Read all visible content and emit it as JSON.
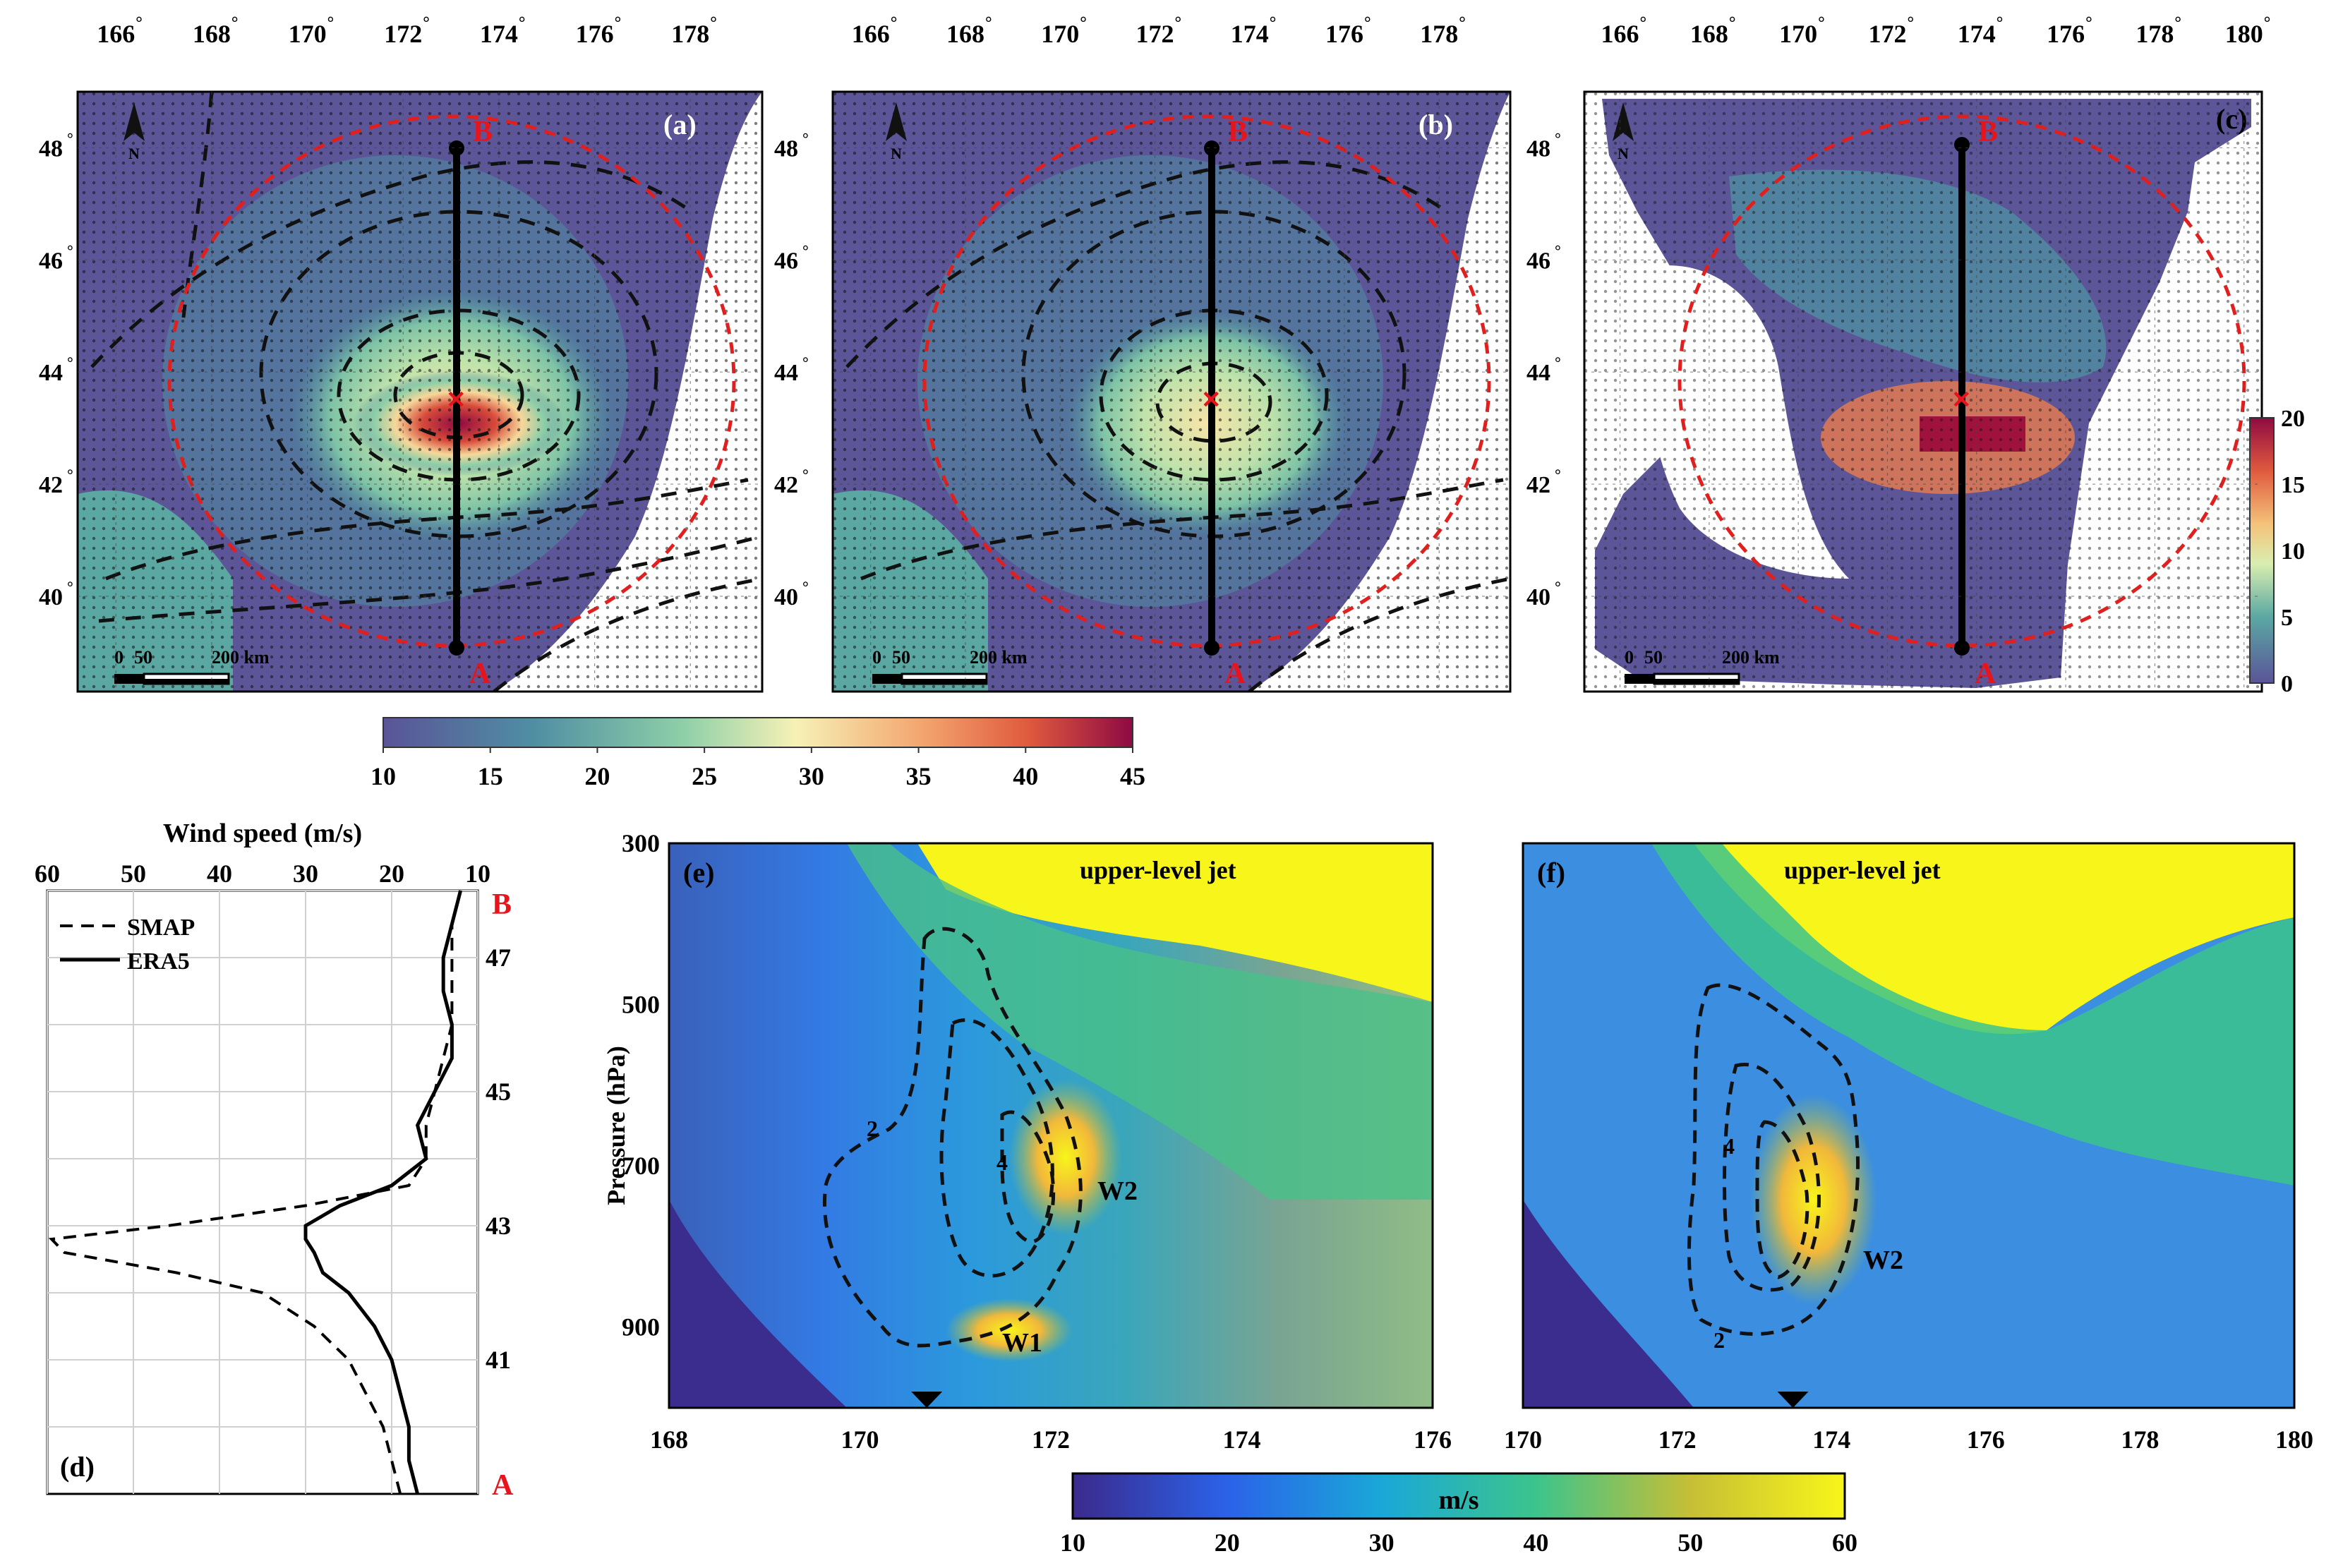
{
  "chart_data": [
    {
      "type": "heatmap",
      "panel": "(a)",
      "lon_ticks": [
        "166",
        "168",
        "170",
        "172",
        "174",
        "176",
        "178"
      ],
      "lat_ticks": [
        "48",
        "46",
        "44",
        "42",
        "40"
      ],
      "lon_range": [
        165,
        179
      ],
      "lat_range": [
        38.3,
        49
      ],
      "points": {
        "A": "A",
        "B": "B"
      },
      "scale_bar": {
        "zero": "0",
        "mid": "50",
        "end": "200 km"
      },
      "north": "N",
      "colorbar": {
        "min": 10,
        "max": 45,
        "ticks": [
          "10",
          "15",
          "20",
          "25",
          "30",
          "35",
          "40",
          "45"
        ]
      },
      "cyclone_center": {
        "lon": 173.3,
        "lat": 43.5
      },
      "transect": {
        "lon": 173.3,
        "lat_from": 39,
        "lat_to": 48
      }
    },
    {
      "type": "heatmap",
      "panel": "(b)",
      "lon_ticks": [
        "166",
        "168",
        "170",
        "172",
        "174",
        "176",
        "178"
      ],
      "lat_ticks": [
        "48",
        "46",
        "44",
        "42",
        "40"
      ],
      "points": {
        "A": "A",
        "B": "B"
      },
      "scale_bar": {
        "zero": "0",
        "mid": "50",
        "end": "200 km"
      },
      "north": "N",
      "cyclone_center": {
        "lon": 173.3,
        "lat": 43.5
      }
    },
    {
      "type": "heatmap",
      "panel": "(c)",
      "lon_ticks": [
        "166",
        "168",
        "170",
        "172",
        "174",
        "176",
        "178",
        "180"
      ],
      "lat_ticks": [
        "48",
        "46",
        "44",
        "42",
        "40"
      ],
      "points": {
        "A": "A",
        "B": "B"
      },
      "scale_bar": {
        "zero": "0",
        "mid": "50",
        "end": "200 km"
      },
      "north": "N",
      "colorbar": {
        "min": 0,
        "max": 20,
        "ticks": [
          "20",
          "15",
          "10",
          "5",
          "0"
        ]
      }
    },
    {
      "type": "line",
      "panel": "(d)",
      "xlabel": "Wind speed (m/s)",
      "x_ticks": [
        "60",
        "50",
        "40",
        "30",
        "20",
        "10"
      ],
      "xlim": [
        60,
        10
      ],
      "y_ticks": [
        "47",
        "45",
        "43",
        "41"
      ],
      "ylim": [
        39,
        48
      ],
      "top_label": "B",
      "bottom_label": "A",
      "series": [
        {
          "name": "SMAP",
          "style": "dashed",
          "lat": [
            39.0,
            39.5,
            40.0,
            40.5,
            41.0,
            41.5,
            42.0,
            42.3,
            42.6,
            42.8,
            43.0,
            43.3,
            43.6,
            44.0,
            44.5,
            45.0,
            45.5,
            46.0,
            46.5,
            47.0,
            47.5,
            48.0
          ],
          "speed": [
            19,
            20,
            21,
            23,
            25,
            29,
            35,
            45,
            58,
            59.5,
            46,
            30,
            18,
            16,
            16,
            15,
            14,
            13,
            13,
            13,
            13,
            12
          ]
        },
        {
          "name": "ERA5",
          "style": "solid",
          "lat": [
            39.0,
            39.5,
            40.0,
            40.5,
            41.0,
            41.5,
            42.0,
            42.3,
            42.6,
            42.8,
            43.0,
            43.3,
            43.6,
            44.0,
            44.5,
            45.0,
            45.5,
            46.0,
            46.5,
            47.0,
            47.5,
            48.0
          ],
          "speed": [
            17,
            18,
            18,
            19,
            20,
            22,
            25,
            28,
            29,
            30,
            30,
            26,
            20,
            16,
            17,
            15,
            13,
            13,
            14,
            14,
            13,
            12
          ]
        }
      ]
    },
    {
      "type": "heatmap",
      "panel": "(e)",
      "xlim": [
        168,
        176
      ],
      "x_ticks": [
        "168",
        "170",
        "172",
        "174",
        "176"
      ],
      "ylabel": "Pressure (hPa)",
      "y_ticks": [
        "300",
        "500",
        "700",
        "900"
      ],
      "ylim": [
        300,
        1000
      ],
      "annotations": [
        "upper-level jet",
        "W1",
        "W2",
        "2",
        "4"
      ],
      "marker_lon": 170.7
    },
    {
      "type": "heatmap",
      "panel": "(f)",
      "xlim": [
        170,
        180
      ],
      "x_ticks": [
        "170",
        "172",
        "174",
        "176",
        "178",
        "180"
      ],
      "y_ticks": [
        "300",
        "500",
        "700",
        "900"
      ],
      "ylim": [
        300,
        1000
      ],
      "annotations": [
        "upper-level jet",
        "W2",
        "2",
        "4"
      ],
      "marker_lon": 173.5
    },
    {
      "type": "colorbar",
      "label": "m/s",
      "min": 10,
      "max": 60,
      "ticks": [
        "10",
        "20",
        "30",
        "40",
        "50",
        "60"
      ]
    }
  ],
  "colors": {
    "transect_label": "#e8141c",
    "red_dash": "#e0201e",
    "viridis_low": "#3e1f87",
    "viridis_high": "#f7f21a"
  },
  "legend": {
    "smap": "SMAP",
    "era5": "ERA5"
  }
}
